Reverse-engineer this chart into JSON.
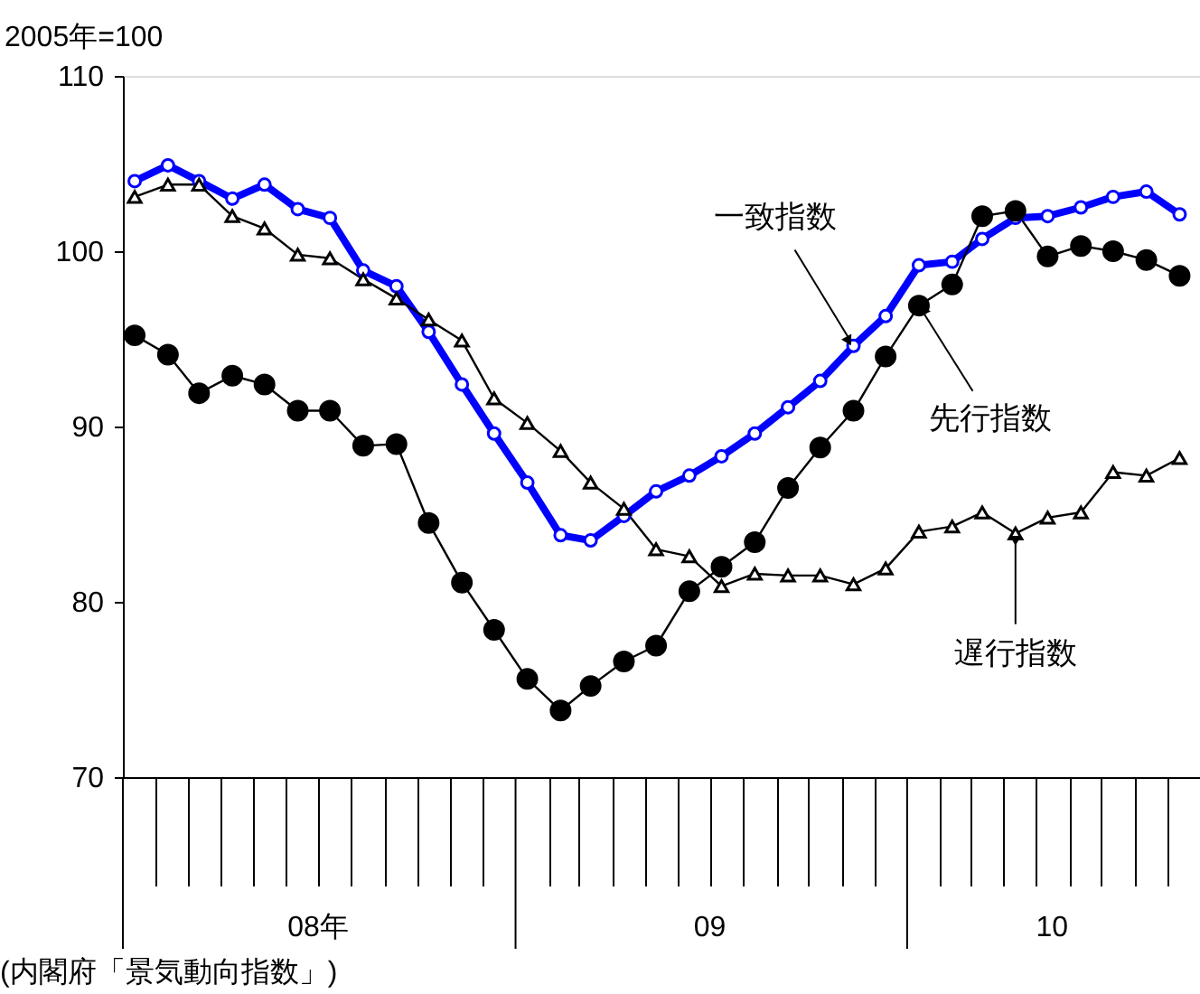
{
  "chart_data": {
    "type": "line",
    "ylabel": "2005年=100",
    "x": [
      "2008-01-12",
      "2008-02-12",
      "2008-03-12",
      "2008-04-12",
      "2008-05-12",
      "2008-06-12",
      "2008-07-12",
      "2008-08-12",
      "2008-09-12",
      "2008-10-12",
      "2008-11-12",
      "2008-12-12",
      "2009-01-12",
      "2009-02-12",
      "2009-03-12",
      "2009-04-12",
      "2009-05-12",
      "2009-06-12",
      "2009-07-12",
      "2009-08-12",
      "2009-09-12",
      "2009-10-12",
      "2009-11-12",
      "2009-12-12",
      "2010-01-12",
      "2010-02-12",
      "2010-03-12",
      "2010-04-12",
      "2010-05-12",
      "2010-06-12",
      "2010-07-12",
      "2010-08-12",
      "2010-09-12"
    ],
    "series": [
      {
        "color": "#0000ff",
        "marker": "circle",
        "values": [
          104.0,
          104.9,
          104.0,
          103.0,
          103.8,
          102.4,
          101.9,
          98.9,
          98.0,
          95.4,
          92.4,
          89.6,
          86.8,
          83.8,
          83.5,
          84.9,
          86.3,
          87.2,
          88.3,
          89.6,
          91.1,
          92.6,
          94.6,
          96.3,
          99.2,
          99.4,
          100.7,
          101.9,
          102.0,
          102.5,
          103.1,
          103.4,
          102.1
        ]
      },
      {
        "color": "#000000",
        "marker": "circle",
        "values": [
          95.2,
          94.1,
          91.9,
          92.9,
          92.4,
          90.9,
          90.9,
          88.9,
          89.0,
          84.5,
          81.1,
          78.4,
          75.6,
          73.8,
          75.2,
          76.6,
          77.5,
          80.6,
          82.0,
          83.4,
          86.5,
          88.8,
          90.9,
          94.0,
          96.9,
          98.1,
          102.0,
          102.3,
          99.7,
          100.3,
          100.0,
          99.5,
          98.6
        ]
      },
      {
        "color": "#000000",
        "marker": "triangle",
        "values": [
          103.1,
          103.8,
          103.8,
          102.0,
          101.3,
          99.8,
          99.6,
          98.4,
          97.3,
          96.1,
          94.9,
          91.6,
          90.2,
          88.6,
          86.8,
          85.3,
          83.0,
          82.6,
          80.9,
          81.6,
          81.5,
          81.5,
          81.0,
          81.9,
          84.0,
          84.3,
          85.1,
          83.9,
          84.8,
          85.1,
          87.4,
          87.2,
          88.2
        ]
      }
    ],
    "xlim": [
      "2008-01-01",
      "2010-10-01"
    ],
    "xticks": [
      {
        "value": "2008-07-01",
        "label": "08年"
      },
      {
        "value": "2009-07-01",
        "label": "09"
      },
      {
        "value": "2010-05-16",
        "label": "10"
      }
    ],
    "ylim": [
      70,
      110
    ],
    "yticks": [
      70,
      80,
      90,
      100,
      110
    ],
    "grid": false,
    "line_style": "solid",
    "annotations": [
      {
        "text": "一致指数",
        "x": "2009-11-12",
        "y": 94.6
      },
      {
        "text": "先行指数",
        "x": "2010-01-12",
        "y": 96.9
      },
      {
        "text": "遅行指数",
        "x": "2010-04-12",
        "y": 83.9
      },
      "(内閣府「景気動向指数」)"
    ]
  }
}
